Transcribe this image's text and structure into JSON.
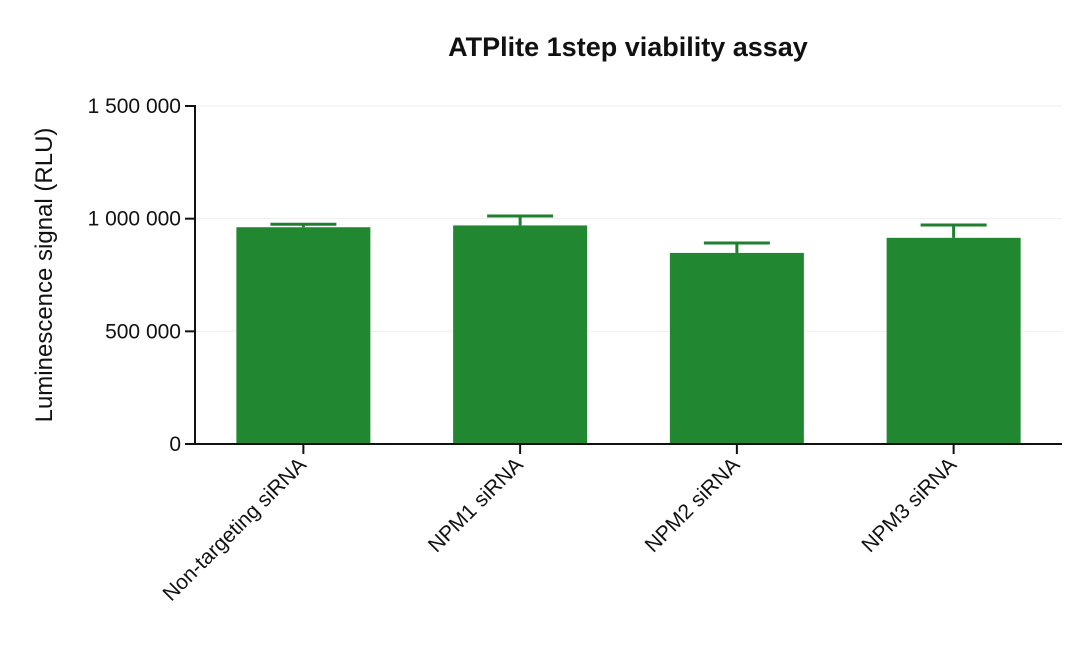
{
  "chart_data": {
    "type": "bar",
    "title": "ATPlite 1step viability assay",
    "xlabel": "",
    "ylabel": "Luminescence signal (RLU)",
    "categories": [
      "Non-targeting siRNA",
      "NPM1 siRNA",
      "NPM2 siRNA",
      "NPM3 siRNA"
    ],
    "series": [
      {
        "values": [
          962000,
          970000,
          848000,
          915000
        ],
        "error_upper": [
          975000,
          1012000,
          892000,
          972000
        ]
      }
    ],
    "ylim": [
      0,
      1500000
    ],
    "yticks": [
      0,
      500000,
      1000000,
      1500000
    ],
    "ytick_labels": [
      "0",
      "500 000",
      "1 000 000",
      "1 500 000"
    ],
    "grid": true,
    "legend": "none",
    "bar_color": "#218730",
    "error_bar_color": "#1f7f2e",
    "axis_color": "#111111",
    "grid_color": "#eeeeee"
  }
}
